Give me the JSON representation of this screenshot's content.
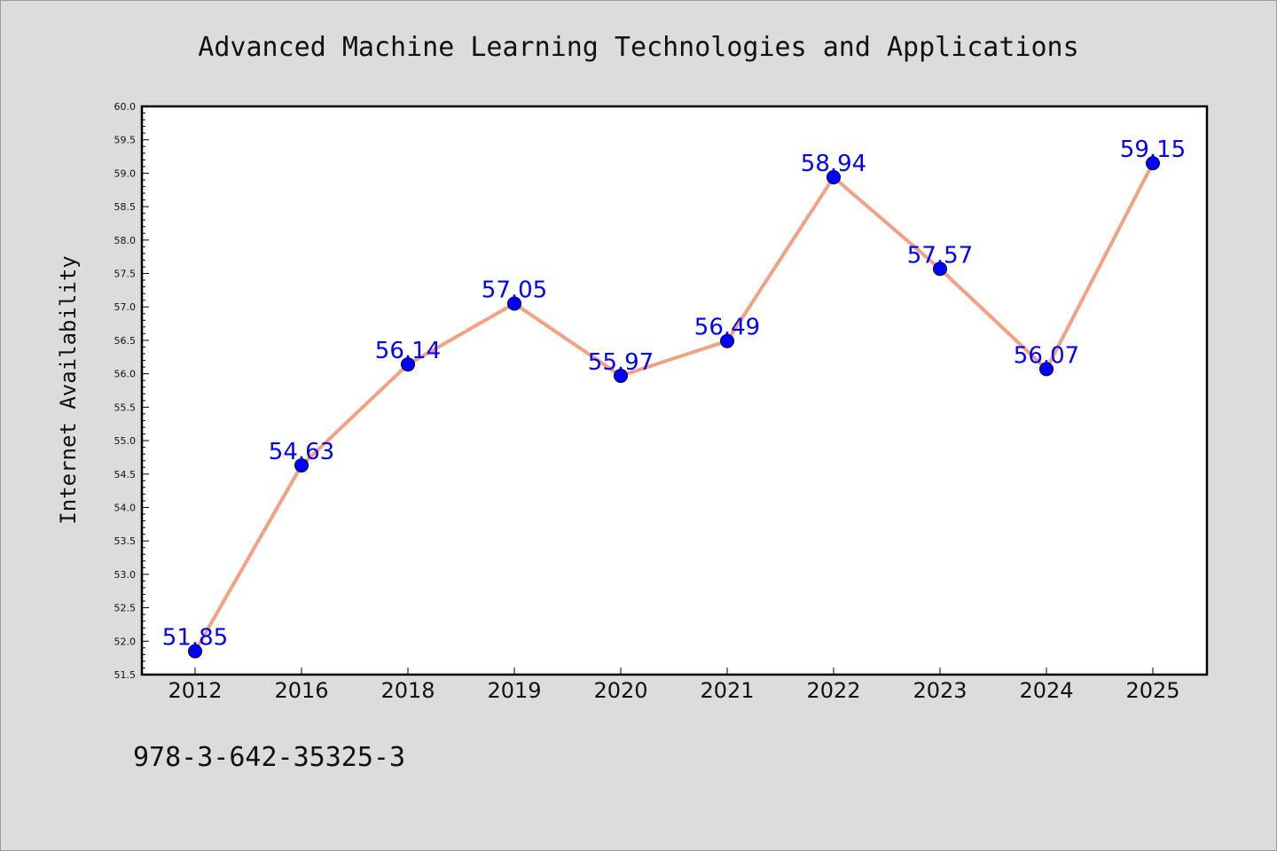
{
  "chart_data": {
    "type": "line",
    "title": "Advanced Machine Learning Technologies and Applications",
    "xlabel": "",
    "ylabel": "Internet Availability",
    "categories": [
      "2012",
      "2016",
      "2018",
      "2019",
      "2020",
      "2021",
      "2022",
      "2023",
      "2024",
      "2025"
    ],
    "series": [
      {
        "values": [
          51.85,
          54.63,
          56.14,
          57.05,
          55.97,
          56.49,
          58.94,
          57.57,
          56.07,
          59.15
        ],
        "labels": [
          "51.85",
          "54.63",
          "56.14",
          "57.05",
          "55.97",
          "56.49",
          "58.94",
          "57.57",
          "56.07",
          "59.15"
        ]
      }
    ],
    "ylim": [
      51.5,
      60.0
    ],
    "yticks": [
      "51.5",
      "52.0",
      "52.5",
      "53.0",
      "53.5",
      "54.0",
      "54.5",
      "55.0",
      "55.5",
      "56.0",
      "56.5",
      "57.0",
      "57.5",
      "58.0",
      "58.5",
      "59.0",
      "59.5",
      "60.0"
    ],
    "grid": false,
    "legend": "none",
    "colors": {
      "line": "#f4a082",
      "marker": "#0000ff",
      "label": "#0000ff"
    }
  },
  "footer": {
    "isbn": "978-3-642-35325-3"
  }
}
